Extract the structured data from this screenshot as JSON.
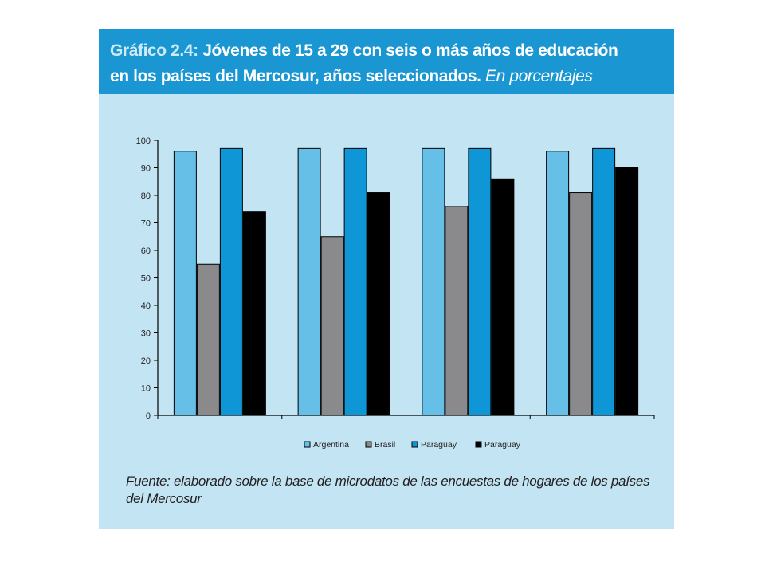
{
  "figure": {
    "title_label": "Gráfico 2.4:",
    "title_line1": "Jóvenes de 15 a 29 con seis o más años de educación",
    "title_line2": "en los países del Mercosur, años seleccionados.",
    "title_units": "En porcentajes",
    "source": "Fuente: elaborado sobre la base de microdatos de las encuestas de hogares de los países del Mercosur"
  },
  "colors": {
    "title_bar": "#1a96d2",
    "panel": "#c3e4f3",
    "series": [
      "#66bfe6",
      "#8a8a8c",
      "#0f96d6",
      "#000000"
    ]
  },
  "chart_data": {
    "type": "bar",
    "title": "Jóvenes de 15 a 29 con seis o más años de educación en los países del Mercosur, años seleccionados. En porcentajes",
    "xlabel": "",
    "ylabel": "",
    "categories": [
      "",
      "",
      "",
      ""
    ],
    "ylim": [
      0,
      100
    ],
    "yticks": [
      0,
      10,
      20,
      30,
      40,
      50,
      60,
      70,
      80,
      90,
      100
    ],
    "grid": false,
    "legend_position": "bottom",
    "series": [
      {
        "name": "Argentina",
        "values": [
          96,
          97,
          97,
          96
        ]
      },
      {
        "name": "Brasil",
        "values": [
          55,
          65,
          76,
          81
        ]
      },
      {
        "name": "Paraguay",
        "values": [
          97,
          97,
          97,
          97
        ]
      },
      {
        "name": "Paraguay",
        "values": [
          74,
          81,
          86,
          90
        ]
      }
    ]
  }
}
